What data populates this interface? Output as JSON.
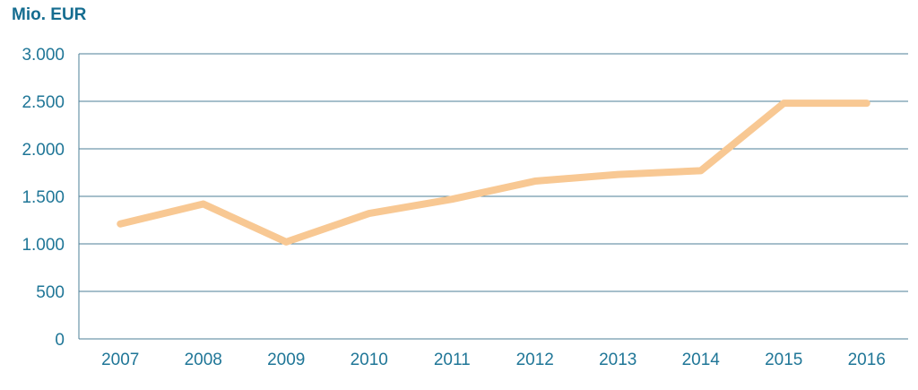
{
  "chart_data": {
    "type": "line",
    "title": "Mio. EUR",
    "xlabel": "",
    "ylabel": "Mio. EUR",
    "categories": [
      "2007",
      "2008",
      "2009",
      "2010",
      "2011",
      "2012",
      "2013",
      "2014",
      "2015",
      "2016"
    ],
    "series": [
      {
        "name": "Mio. EUR",
        "values": [
          1210,
          1420,
          1020,
          1320,
          1470,
          1660,
          1730,
          1770,
          2480,
          2480
        ]
      }
    ],
    "ylim": [
      0,
      3000
    ],
    "yticks": [
      {
        "value": 0,
        "label": "0"
      },
      {
        "value": 500,
        "label": "500"
      },
      {
        "value": 1000,
        "label": "1.000"
      },
      {
        "value": 1500,
        "label": "1.500"
      },
      {
        "value": 2000,
        "label": "2.000"
      },
      {
        "value": 2500,
        "label": "2.500"
      },
      {
        "value": 3000,
        "label": "3.000"
      }
    ],
    "grid": true,
    "legend_position": "none",
    "colors": {
      "line": "#f8c893",
      "grid": "#4c7f97",
      "title": "#156d90",
      "tick_label": "#1f7697"
    }
  }
}
